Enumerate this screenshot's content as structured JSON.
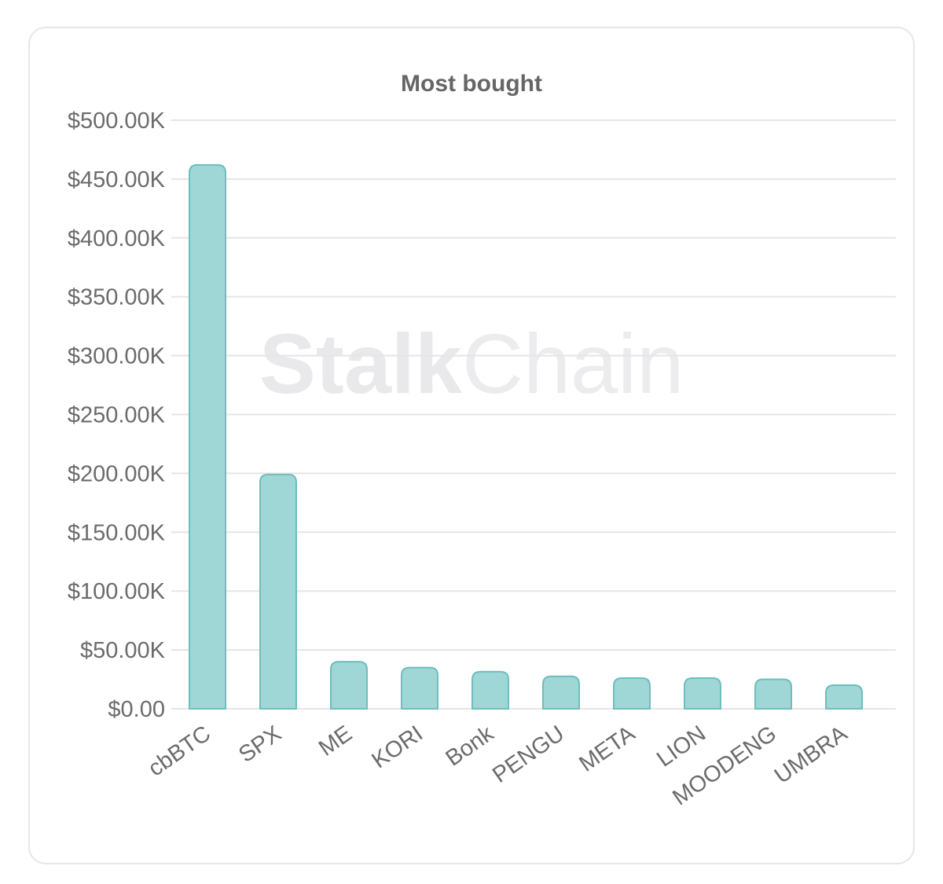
{
  "watermark": {
    "part1": "Stalk",
    "part2": "Chain"
  },
  "chart_data": {
    "type": "bar",
    "title": "Most bought",
    "categories": [
      "cbBTC",
      "SPX",
      "ME",
      "KORI",
      "Bonk",
      "PENGU",
      "META",
      "LION",
      "MOODENG",
      "UMBRA"
    ],
    "values": [
      462000,
      199000,
      40000,
      35000,
      31500,
      27500,
      26000,
      26000,
      25000,
      20000
    ],
    "ylim": [
      0,
      500000
    ],
    "yticks": [
      0,
      50000,
      100000,
      150000,
      200000,
      250000,
      300000,
      350000,
      400000,
      450000,
      500000
    ],
    "ytick_labels": [
      "$0.00",
      "$50.00K",
      "$100.00K",
      "$150.00K",
      "$200.00K",
      "$250.00K",
      "$300.00K",
      "$350.00K",
      "$400.00K",
      "$450.00K",
      "$500.00K"
    ],
    "grid": true,
    "legend": "none",
    "bar_fill": "#9fd6d6",
    "bar_stroke": "#6fbdbd",
    "grid_color": "#e5e5e8"
  }
}
